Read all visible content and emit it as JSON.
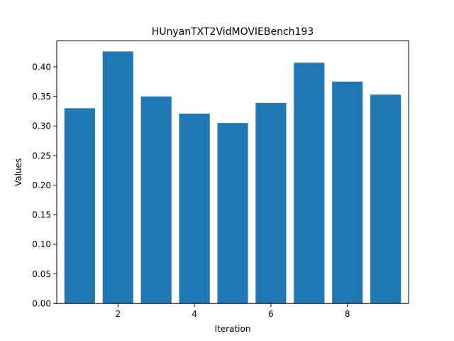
{
  "chart_data": {
    "type": "bar",
    "title": "HUnyanTXT2VidMOVIEBench193",
    "xlabel": "Iteration",
    "ylabel": "Values",
    "x": [
      1,
      2,
      3,
      4,
      5,
      6,
      7,
      8,
      9
    ],
    "values": [
      0.33,
      0.426,
      0.35,
      0.321,
      0.305,
      0.339,
      0.407,
      0.375,
      0.353
    ],
    "xlim": [
      0.4,
      9.6
    ],
    "ylim": [
      0,
      0.4438
    ],
    "xticks": [
      2,
      4,
      6,
      8
    ],
    "xtick_labels": [
      "2",
      "4",
      "6",
      "8"
    ],
    "yticks": [
      0,
      0.05,
      0.1,
      0.15,
      0.2,
      0.25,
      0.3,
      0.35,
      0.4
    ],
    "ytick_labels": [
      "0.00",
      "0.05",
      "0.10",
      "0.15",
      "0.20",
      "0.25",
      "0.30",
      "0.35",
      "0.40"
    ],
    "bar_color": "#1f77b4",
    "grid": false,
    "legend": "none"
  }
}
